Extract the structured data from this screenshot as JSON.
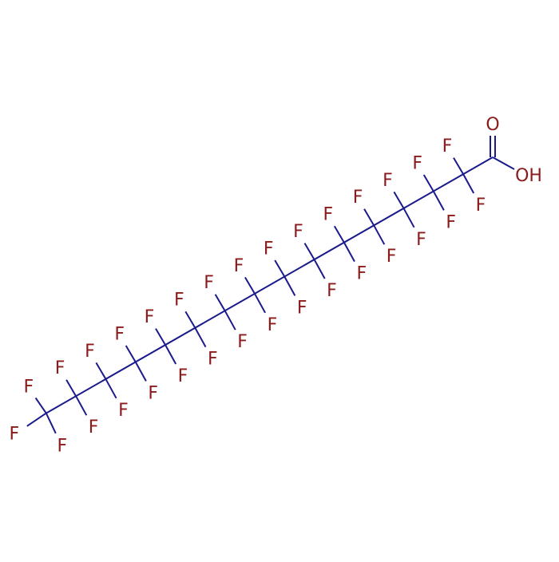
{
  "carboxyl": {
    "carbonyl_oxygen": "O",
    "hydroxyl": "OH"
  },
  "cf2_groups": [
    [
      "F",
      "F"
    ],
    [
      "F",
      "F"
    ],
    [
      "F",
      "F"
    ],
    [
      "F",
      "F"
    ],
    [
      "F",
      "F"
    ],
    [
      "F",
      "F"
    ],
    [
      "F",
      "F"
    ],
    [
      "F",
      "F"
    ],
    [
      "F",
      "F"
    ],
    [
      "F",
      "F"
    ],
    [
      "F",
      "F"
    ],
    [
      "F",
      "F"
    ],
    [
      "F",
      "F"
    ],
    [
      "F",
      "F"
    ]
  ],
  "cf3_group": [
    "F",
    "F",
    "F"
  ]
}
